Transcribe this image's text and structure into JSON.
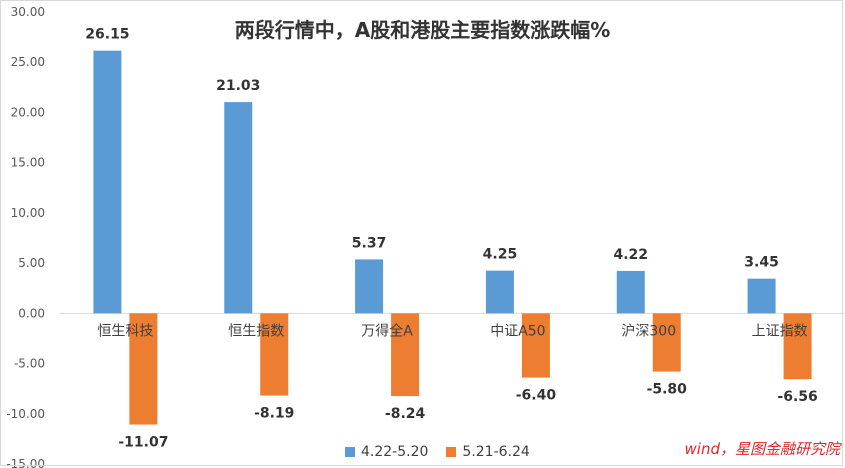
{
  "chart_data": {
    "type": "bar",
    "title": "两段行情中，A股和港股主要指数涨跌幅%",
    "source": "wind，星图金融研究院",
    "categories": [
      "恒生科技",
      "恒生指数",
      "万得全A",
      "中证A50",
      "沪深300",
      "上证指数"
    ],
    "series": [
      {
        "name": "4.22-5.20",
        "color": "#5b9bd5",
        "values": [
          26.15,
          21.03,
          5.37,
          4.25,
          4.22,
          3.45
        ]
      },
      {
        "name": "5.21-6.24",
        "color": "#ed7d31",
        "values": [
          -11.07,
          -8.19,
          -8.24,
          -6.4,
          -5.8,
          -6.56
        ]
      }
    ],
    "ylim": [
      -15,
      30
    ],
    "yticks": [
      -15,
      -10,
      -5,
      0,
      5,
      10,
      15,
      20,
      25,
      30
    ],
    "ytick_labels": [
      "-15.00",
      "-10.00",
      "-5.00",
      "0.00",
      "5.00",
      "10.00",
      "15.00",
      "20.00",
      "25.00",
      "30.00"
    ],
    "data_labels": [
      [
        "26.15",
        "21.03",
        "5.37",
        "4.25",
        "4.22",
        "3.45"
      ],
      [
        "-11.07",
        "-8.19",
        "-8.24",
        "-6.40",
        "-5.80",
        "-6.56"
      ]
    ],
    "grid": false,
    "legend_position": "bottom"
  }
}
